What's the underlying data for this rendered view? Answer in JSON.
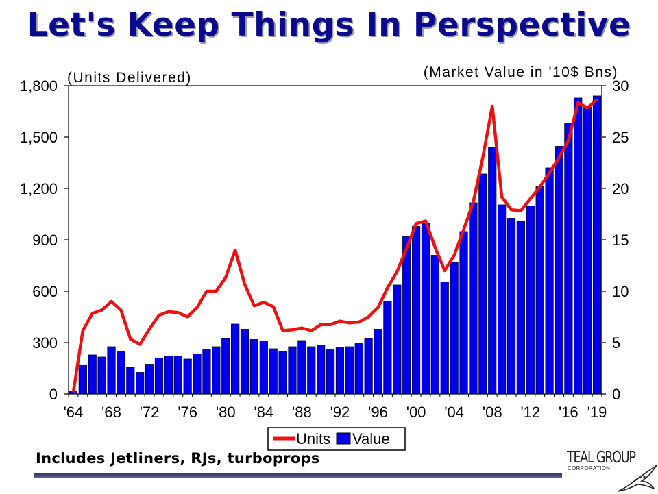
{
  "slide": {
    "title": "Let's Keep Things In Perspective",
    "footnote": "Includes Jetliners, RJs, turboprops",
    "logo": {
      "name": "TEAL GROUP",
      "subtitle": "CORPORATION",
      "icon": "bird-icon"
    }
  },
  "colors": {
    "title": "#0a0a8c",
    "bars": "#0000ee",
    "line": "#ee1111"
  },
  "chart_data": {
    "type": "bar",
    "left_axis_label": "(Units Delivered)",
    "right_axis_label": "(Market Value in '10$ Bns)",
    "left_ylim": [
      0,
      1800
    ],
    "left_ticks": [
      "0",
      "300",
      "600",
      "900",
      "1,200",
      "1,500",
      "1,800"
    ],
    "right_ylim": [
      0,
      30
    ],
    "right_ticks": [
      "0",
      "5",
      "10",
      "15",
      "20",
      "25",
      "30"
    ],
    "x_tick_labels": [
      "'64",
      "'68",
      "'72",
      "'76",
      "'80",
      "'84",
      "'88",
      "'92",
      "'96",
      "'00",
      "'04",
      "'08",
      "'12",
      "'16",
      "'19"
    ],
    "x_tick_years": [
      1964,
      1968,
      1972,
      1976,
      1980,
      1984,
      1988,
      1992,
      1996,
      2000,
      2004,
      2008,
      2012,
      2016,
      2019
    ],
    "grid": false,
    "legend_position": "bottom-center",
    "years": [
      1964,
      1965,
      1966,
      1967,
      1968,
      1969,
      1970,
      1971,
      1972,
      1973,
      1974,
      1975,
      1976,
      1977,
      1978,
      1979,
      1980,
      1981,
      1982,
      1983,
      1984,
      1985,
      1986,
      1987,
      1988,
      1989,
      1990,
      1991,
      1992,
      1993,
      1994,
      1995,
      1996,
      1997,
      1998,
      1999,
      2000,
      2001,
      2002,
      2003,
      2004,
      2005,
      2006,
      2007,
      2008,
      2009,
      2010,
      2011,
      2012,
      2013,
      2014,
      2015,
      2016,
      2017,
      2018,
      2019
    ],
    "series": [
      {
        "name": "Units",
        "kind": "line",
        "axis": "left",
        "values": [
          10,
          370,
          470,
          490,
          540,
          490,
          320,
          290,
          380,
          460,
          480,
          475,
          450,
          505,
          600,
          600,
          680,
          840,
          640,
          515,
          535,
          510,
          370,
          375,
          385,
          370,
          405,
          405,
          425,
          415,
          420,
          450,
          505,
          620,
          715,
          850,
          995,
          1010,
          855,
          720,
          810,
          960,
          1120,
          1380,
          1680,
          1150,
          1075,
          1070,
          1140,
          1210,
          1290,
          1380,
          1480,
          1700,
          1670,
          1720
        ]
      },
      {
        "name": "Value",
        "kind": "bar",
        "axis": "right",
        "values": [
          0.3,
          2.8,
          3.8,
          3.6,
          4.6,
          4.1,
          2.6,
          2.1,
          2.9,
          3.5,
          3.7,
          3.7,
          3.4,
          3.9,
          4.3,
          4.6,
          5.4,
          6.8,
          6.3,
          5.3,
          5.1,
          4.4,
          4.1,
          4.6,
          5.2,
          4.6,
          4.7,
          4.3,
          4.5,
          4.6,
          4.9,
          5.4,
          6.3,
          9.0,
          10.6,
          15.3,
          16.3,
          16.6,
          13.5,
          10.9,
          12.8,
          15.8,
          18.6,
          21.4,
          24.0,
          18.4,
          17.1,
          16.8,
          18.3,
          20.2,
          22.0,
          24.1,
          26.3,
          28.8,
          27.9,
          29.0
        ]
      }
    ]
  }
}
